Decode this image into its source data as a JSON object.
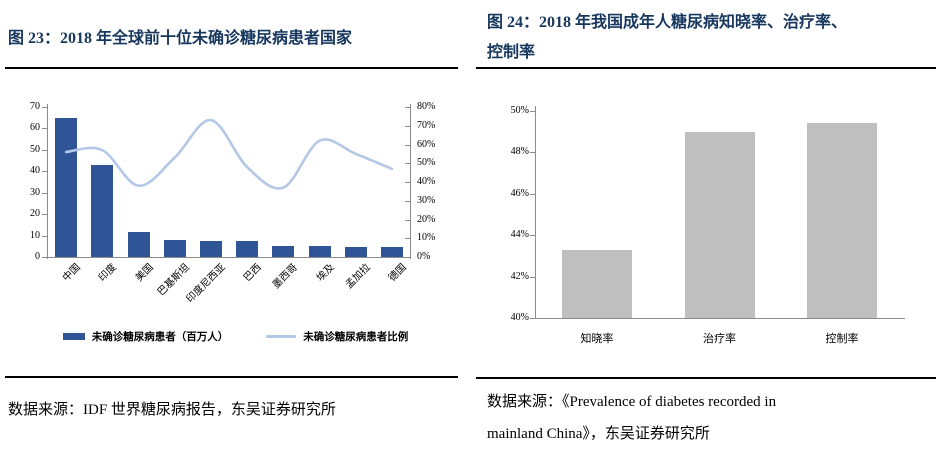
{
  "figure23": {
    "title": "图 23：2018 年全球前十位未确诊糖尿病患者国家",
    "legend_bar": "未确诊糖尿病患者（百万人）",
    "legend_line": "未确诊糖尿病患者比例",
    "source": "数据来源：IDF 世界糖尿病报告，东吴证券研究所"
  },
  "figure24": {
    "title_line1": "图 24：2018 年我国成年人糖尿病知晓率、治疗率、",
    "title_line2": "控制率",
    "source_line1": "数据来源：《Prevalence of diabetes recorded in",
    "source_line2": "mainland China》，东吴证券研究所"
  },
  "colors": {
    "title_navy": "#17375E",
    "bar_blue": "#2F5597",
    "line_light_blue": "#B4C7E7",
    "bar_gray": "#BFBFBF",
    "axis_gray": "#8C8C8C",
    "rule_black": "#000000"
  },
  "chart_data": [
    {
      "type": "bar+line",
      "title": "2018 年全球前十位未确诊糖尿病患者国家",
      "categories": [
        "中国",
        "印度",
        "美国",
        "巴基斯坦",
        "印度尼西亚",
        "巴西",
        "墨西哥",
        "埃及",
        "孟加拉",
        "德国"
      ],
      "series": [
        {
          "name": "未确诊糖尿病患者（百万人）",
          "kind": "bar",
          "axis": "left",
          "values": [
            65,
            43,
            11.5,
            8,
            7.3,
            7.5,
            5,
            5,
            4.7,
            4.7
          ]
        },
        {
          "name": "未确诊糖尿病患者比例",
          "kind": "line",
          "axis": "right",
          "values": [
            56,
            57,
            38,
            53,
            73,
            48,
            37,
            62,
            55,
            47
          ]
        }
      ],
      "left_axis": {
        "min": 0,
        "max": 70,
        "ticks": [
          "0",
          "10",
          "20",
          "30",
          "40",
          "50",
          "60",
          "70"
        ]
      },
      "right_axis": {
        "min": 0,
        "max": 80,
        "ticks": [
          "0%",
          "10%",
          "20%",
          "30%",
          "40%",
          "50%",
          "60%",
          "70%",
          "80%"
        ]
      },
      "grid": false,
      "legend_position": "bottom"
    },
    {
      "type": "bar",
      "title": "2018 年我国成年人糖尿病知晓率、治疗率、控制率",
      "categories": [
        "知晓率",
        "治疗率",
        "控制率"
      ],
      "values": [
        43.3,
        49.0,
        49.4
      ],
      "ylim": [
        40,
        50
      ],
      "yticks": [
        "40%",
        "42%",
        "44%",
        "46%",
        "48%",
        "50%"
      ],
      "unit": "%",
      "grid": false
    }
  ]
}
